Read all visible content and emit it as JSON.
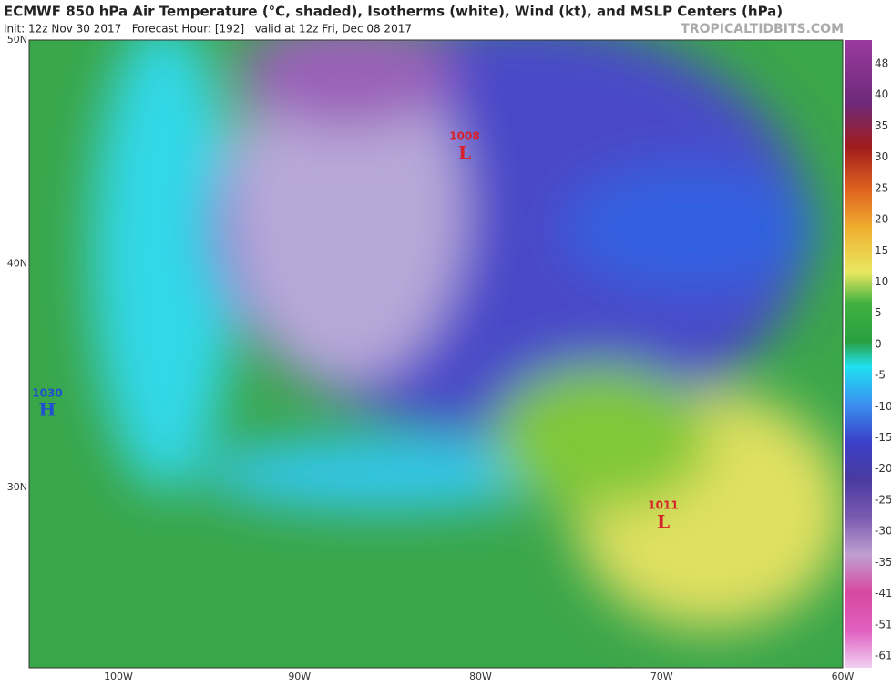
{
  "header": {
    "title": "ECMWF 850 hPa Air Temperature (°C, shaded), Isotherms (white), Wind (kt), and MSLP Centers (hPa)",
    "subtitle": "Init: 12z Nov 30 2017   Forecast Hour: [192]   valid at 12z Fri, Dec 08 2017",
    "site": "TROPICALTIDBITS.COM"
  },
  "map": {
    "lat_labels": [
      "50N",
      "40N",
      "30N"
    ],
    "lon_labels": [
      "100W",
      "90W",
      "80W",
      "70W",
      "60W"
    ],
    "centers": [
      {
        "pressure": 1008,
        "letter": "L",
        "color": "#d8202a"
      },
      {
        "pressure": 1030,
        "letter": "H",
        "color": "#2050d0"
      },
      {
        "pressure": 1011,
        "letter": "L",
        "color": "#d8202a"
      }
    ]
  },
  "colorbar": {
    "ticks": [
      48,
      40,
      35,
      30,
      25,
      20,
      15,
      10,
      5,
      0,
      -5,
      -10,
      -15,
      -20,
      -25,
      -30,
      -35,
      -41,
      -51,
      -61
    ]
  }
}
